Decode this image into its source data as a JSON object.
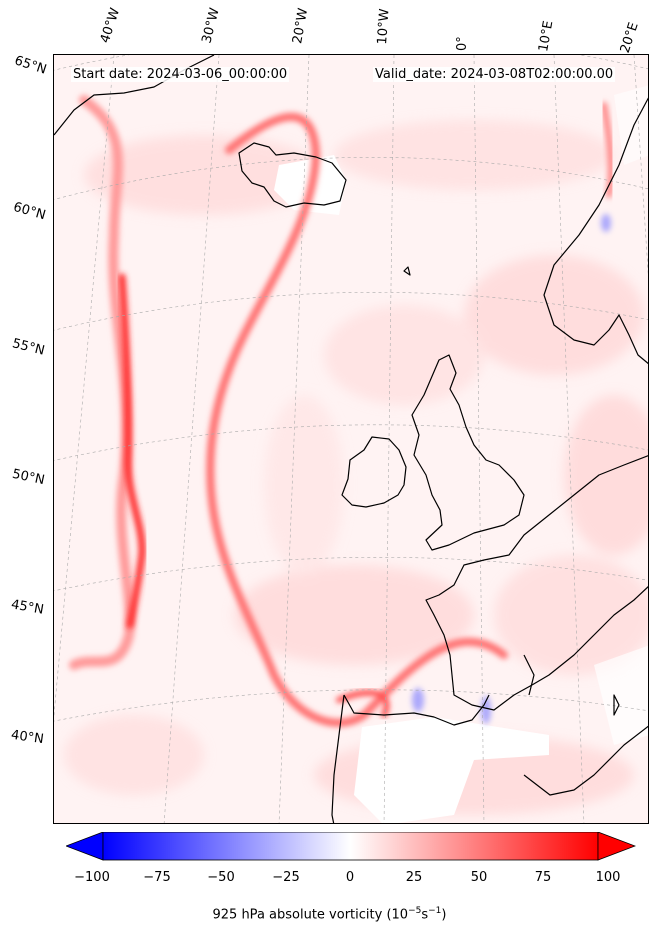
{
  "header": {
    "start_date": "Start date: 2024-03-06_00:00:00",
    "valid_date": "Valid_date: 2024-03-08T02:00:00.00"
  },
  "lon_labels": [
    "40°W",
    "30°W",
    "20°W",
    "10°W",
    "0°",
    "10°E",
    "20°E"
  ],
  "lat_labels": [
    "65°N",
    "60°N",
    "55°N",
    "50°N",
    "45°N",
    "40°N"
  ],
  "colorbar": {
    "title": "925 hPa absolute vorticity (10",
    "title_exp1": "−5",
    "title_mid": "s",
    "title_exp2": "−1",
    "title_end": ")",
    "ticks": [
      "−100",
      "−75",
      "−50",
      "−25",
      "0",
      "25",
      "50",
      "75",
      "100"
    ],
    "min": -100,
    "max": 100,
    "colors": {
      "negative": "#0000ff",
      "zero": "#ffffff",
      "positive": "#ff0000"
    }
  },
  "map": {
    "projection": "lambert-conformal",
    "background": "#fff3f3",
    "coastline_color": "#000000",
    "gridlines": "dashed-grey"
  }
}
